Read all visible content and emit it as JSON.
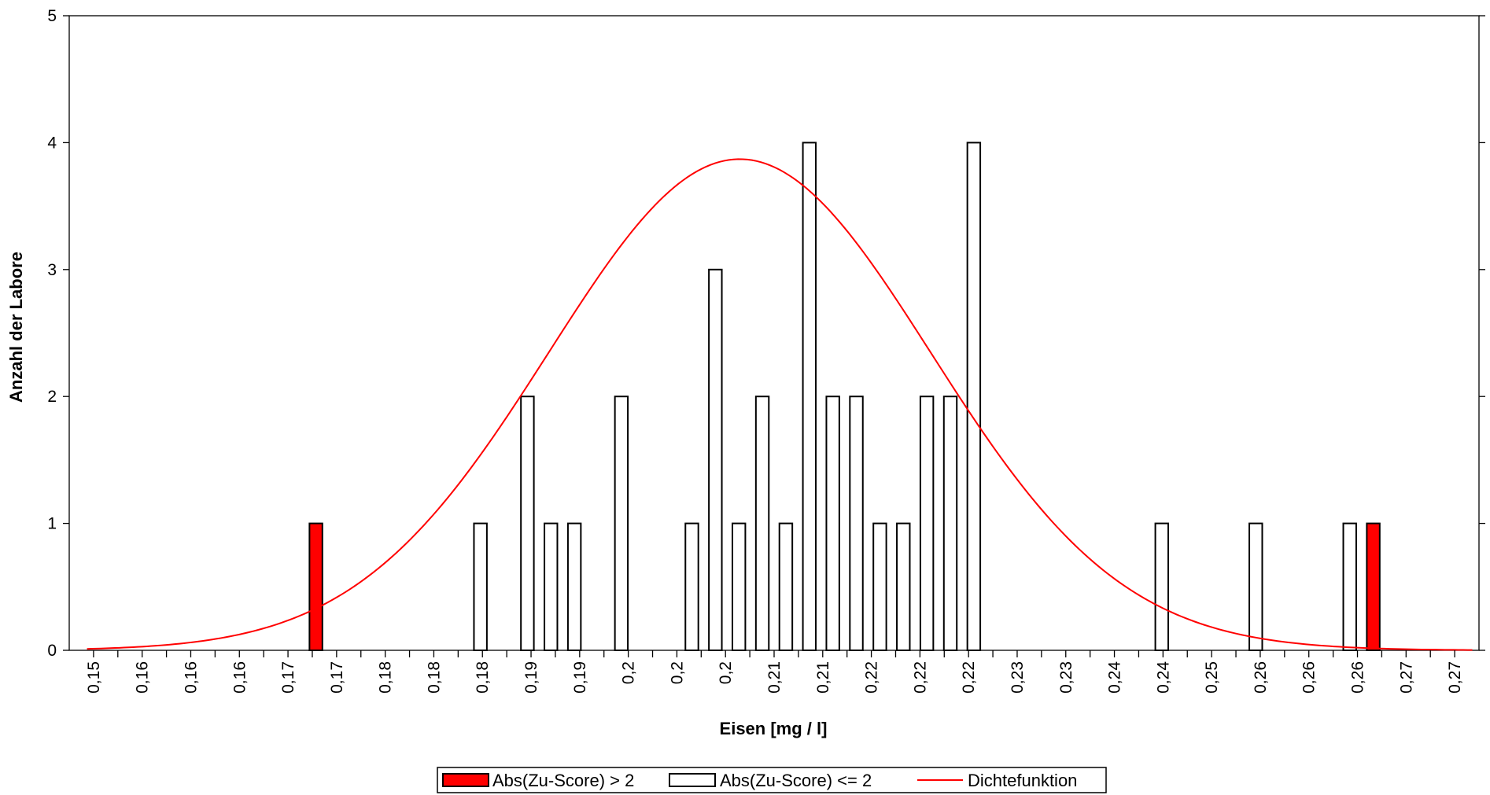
{
  "chart_data": {
    "type": "bar",
    "xlabel": "Eisen [mg / l]",
    "ylabel": "Anzahl der Labore",
    "ylim": [
      0,
      5
    ],
    "yticks": [
      "0",
      "1",
      "2",
      "3",
      "4",
      "5"
    ],
    "xticks": [
      "0,15",
      "0,16",
      "0,16",
      "0,16",
      "0,17",
      "0,17",
      "0,18",
      "0,18",
      "0,18",
      "0,19",
      "0,19",
      "0,2",
      "0,2",
      "0,2",
      "0,21",
      "0,21",
      "0,22",
      "0,22",
      "0,22",
      "0,23",
      "0,23",
      "0,24",
      "0,24",
      "0,25",
      "0,26",
      "0,26",
      "0,26",
      "0,27",
      "0,27"
    ],
    "grid": false,
    "legend_position": "bottom",
    "bin_values": [
      0,
      0,
      0,
      0,
      0,
      0,
      0,
      0,
      0,
      0,
      1,
      0,
      0,
      0,
      0,
      0,
      0,
      0,
      0,
      0,
      0,
      0,
      0,
      0,
      0,
      0,
      0,
      0,
      0,
      0,
      0,
      0,
      0,
      0,
      0,
      0,
      0,
      0,
      0,
      0,
      0,
      0,
      0,
      0,
      0,
      0,
      0,
      0,
      0,
      0,
      0,
      0,
      0,
      0,
      0,
      0,
      0,
      0,
      0,
      0
    ],
    "series": [
      {
        "name": "Abs(Zu-Score) > 2",
        "color": "#ff0000",
        "values": [
          0,
          0,
          0,
          0,
          0,
          0,
          0,
          0,
          0,
          0,
          1,
          0,
          0,
          0,
          0,
          0,
          0,
          0,
          0,
          0,
          0,
          0,
          0,
          0,
          0,
          0,
          0,
          0,
          0,
          0,
          0,
          0,
          0,
          0,
          0,
          0,
          0,
          0,
          0,
          0,
          0,
          0,
          0,
          0,
          0,
          0,
          0,
          0,
          0,
          0,
          0,
          0,
          0,
          0,
          0,
          1,
          0,
          0,
          0,
          0
        ]
      },
      {
        "name": "Abs(Zu-Score) <= 2",
        "color": "#ffffff",
        "values": [
          0,
          0,
          0,
          0,
          0,
          0,
          0,
          0,
          0,
          0,
          0,
          0,
          0,
          0,
          0,
          0,
          0,
          1,
          0,
          2,
          1,
          1,
          0,
          2,
          0,
          0,
          1,
          3,
          1,
          2,
          1,
          4,
          2,
          2,
          1,
          1,
          2,
          2,
          4,
          0,
          0,
          0,
          0,
          0,
          0,
          0,
          1,
          0,
          0,
          0,
          1,
          0,
          0,
          0,
          1,
          0,
          0,
          0,
          0,
          0
        ]
      },
      {
        "name": "Dichtefunktion",
        "color": "#ff0000",
        "type": "line",
        "mean": 0.2098,
        "sd": 0.0172,
        "peak": 3.87,
        "x_start": 0.1494,
        "x_end": 0.2764
      }
    ],
    "bin_start": 0.1494,
    "bin_width": 0.002117
  }
}
